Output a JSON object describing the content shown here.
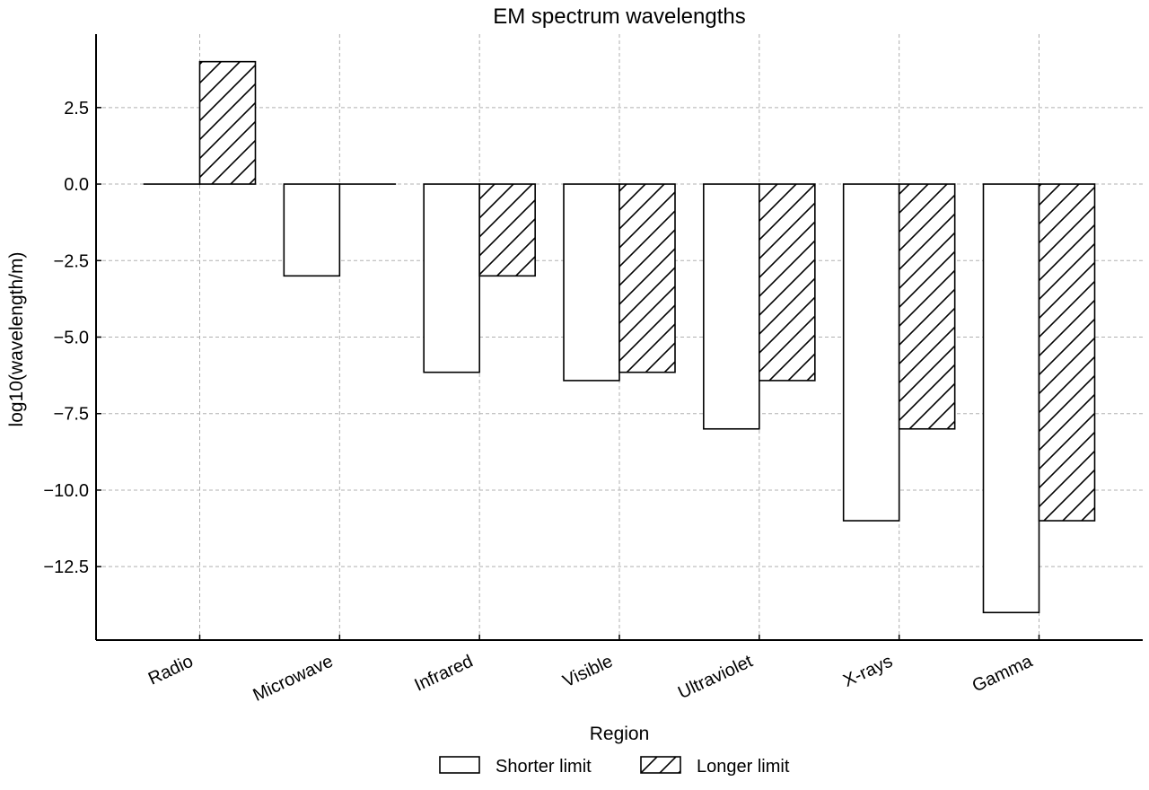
{
  "chart_data": {
    "type": "bar",
    "title": "EM spectrum wavelengths",
    "xlabel": "Region",
    "ylabel": "log10(wavelength/m)",
    "categories": [
      "Radio",
      "Microwave",
      "Infrared",
      "Visible",
      "Ultraviolet",
      "X-rays",
      "Gamma"
    ],
    "series": [
      {
        "name": "Shorter limit",
        "pattern": "none",
        "values": [
          0,
          -3,
          -6.15,
          -6.42,
          -8,
          -11,
          -14
        ]
      },
      {
        "name": "Longer limit",
        "pattern": "hatch",
        "values": [
          4,
          0,
          -3,
          -6.15,
          -6.42,
          -8,
          -11
        ]
      }
    ],
    "ylim": [
      -14.9,
      4.9
    ],
    "yticks": [
      2.5,
      0,
      -2.5,
      -5,
      -7.5,
      -10,
      -12.5
    ],
    "ytick_labels": [
      "2.5",
      "0.0",
      "−2.5",
      "−5.0",
      "−7.5",
      "−10.0",
      "−12.5"
    ],
    "grid": true,
    "legend_position": "bottom-center",
    "colors": {
      "bar_fill": "#ffffff",
      "edge": "#000000",
      "grid": "#b0b0b0"
    }
  }
}
